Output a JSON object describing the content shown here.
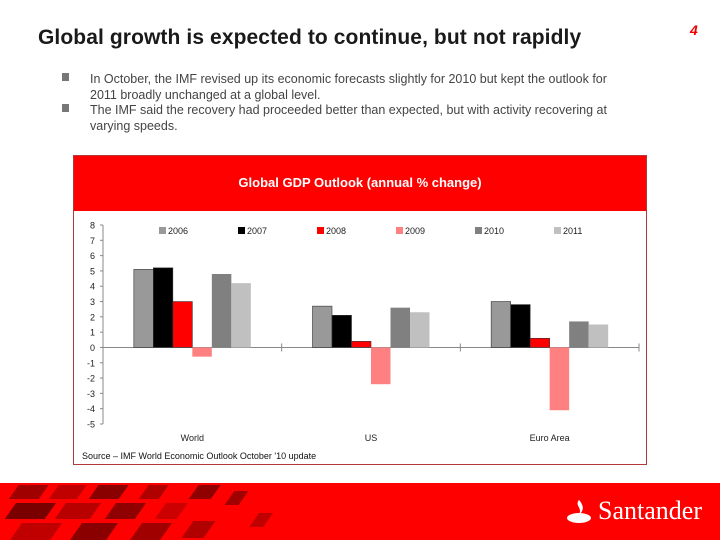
{
  "slide": {
    "title": "Global growth is expected to continue, but not rapidly",
    "page_number": "4",
    "bullets": [
      "In October, the IMF revised up its economic forecasts slightly for 2010 but kept the outlook for 2011 broadly unchanged at a global level.",
      "The IMF said the recovery had proceeded better than expected, but with activity recovering at varying speeds."
    ],
    "source": "Source – IMF World Economic Outlook October '10 update",
    "brand": "Santander",
    "colors": {
      "brand_red": "#ff0000",
      "text": "#444444"
    }
  },
  "chart_data": {
    "type": "bar",
    "title": "Global GDP Outlook (annual % change)",
    "xlabel": "",
    "ylabel": "",
    "ylim": [
      -5,
      8
    ],
    "yticks": [
      "8",
      "7",
      "6",
      "5",
      "4",
      "3",
      "2",
      "1",
      "0",
      "-1",
      "-2",
      "-3",
      "-4",
      "-5"
    ],
    "grid": false,
    "legend_position": "top",
    "categories": [
      "World",
      "US",
      "Euro Area"
    ],
    "series": [
      {
        "name": "2006",
        "color": "#999999",
        "values": [
          5.1,
          2.7,
          3.0
        ]
      },
      {
        "name": "2007",
        "color": "#000000",
        "values": [
          5.2,
          2.1,
          2.8
        ]
      },
      {
        "name": "2008",
        "color": "#ff0000",
        "values": [
          3.0,
          0.4,
          0.6
        ]
      },
      {
        "name": "2009",
        "color": "#ff8080",
        "values": [
          -0.6,
          -2.4,
          -4.1
        ]
      },
      {
        "name": "2010",
        "color": "#808080",
        "values": [
          4.8,
          2.6,
          1.7
        ]
      },
      {
        "name": "2011",
        "color": "#c0c0c0",
        "values": [
          4.2,
          2.3,
          1.5
        ]
      }
    ]
  }
}
